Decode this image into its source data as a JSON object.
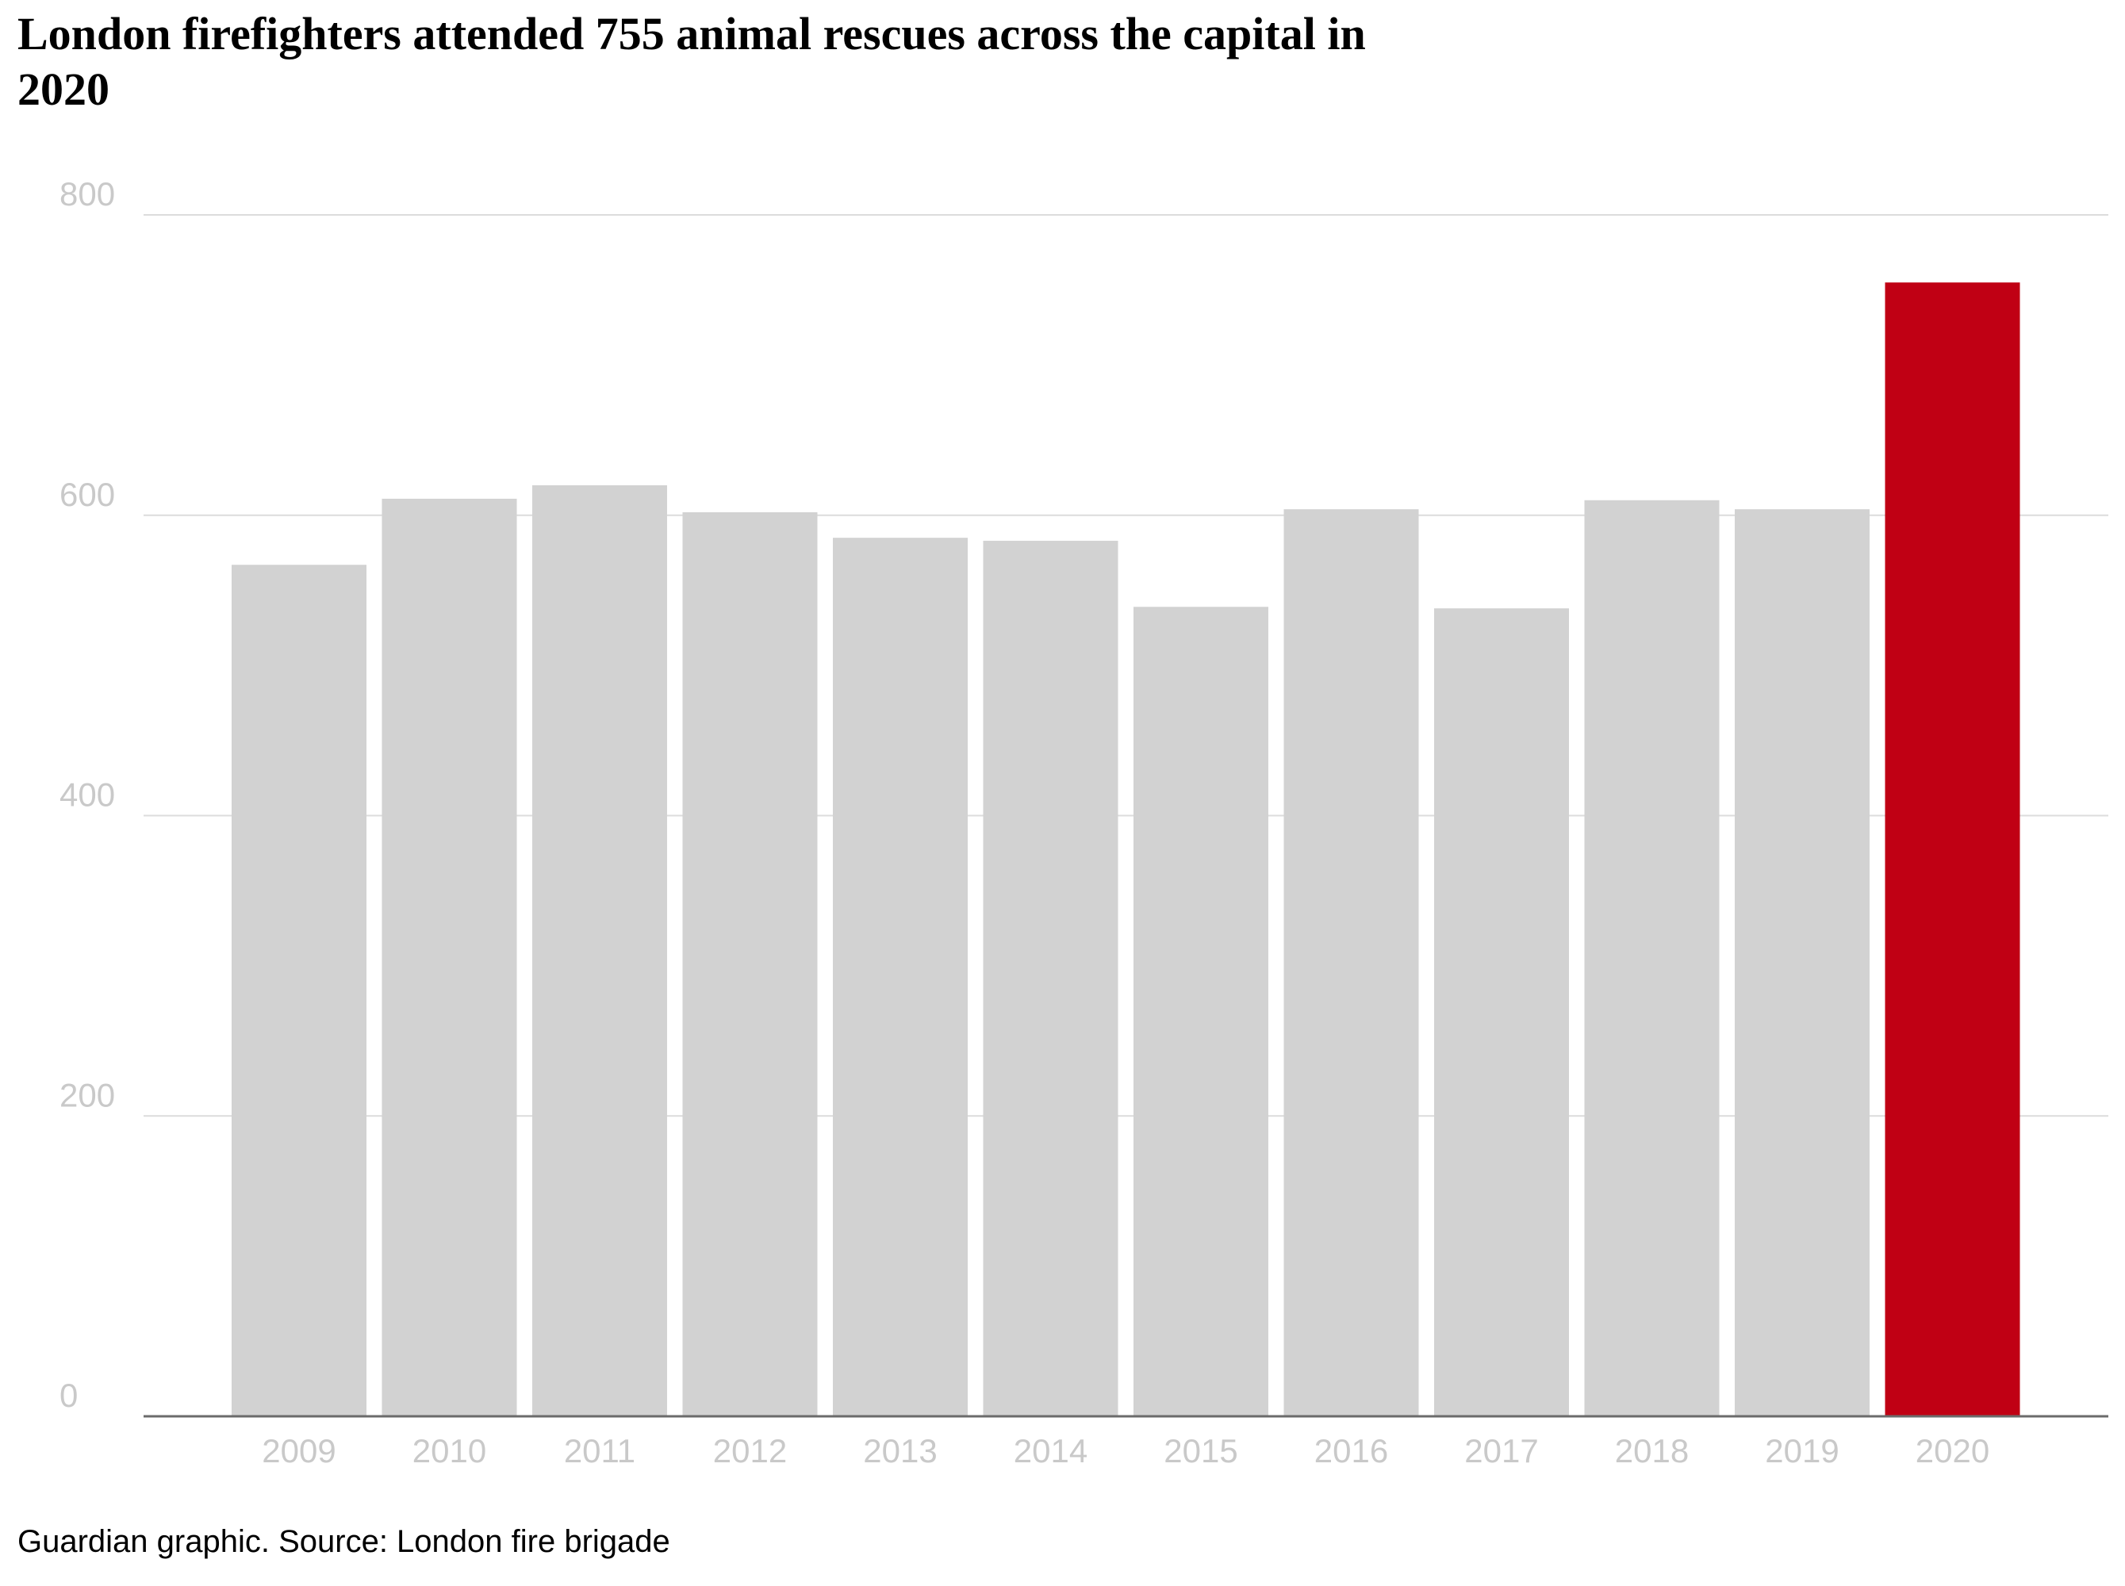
{
  "chart_data": {
    "type": "bar",
    "title": "London firefighters attended 755 animal rescues across the capital in 2020",
    "categories": [
      "2009",
      "2010",
      "2011",
      "2012",
      "2013",
      "2014",
      "2015",
      "2016",
      "2017",
      "2018",
      "2019",
      "2020"
    ],
    "values": [
      567,
      611,
      620,
      602,
      585,
      583,
      539,
      604,
      538,
      610,
      604,
      755
    ],
    "ylim": [
      0,
      800
    ],
    "yticks": [
      0,
      200,
      400,
      600,
      800
    ],
    "xlabel": "",
    "ylabel": "",
    "grid": true,
    "highlight_category": "2020",
    "colors": {
      "bar": "#d2d2d2",
      "highlight": "#c00014",
      "grid": "#dcdcdc",
      "axis": "#6b6b6b",
      "tick_label": "#c9c9c9"
    }
  },
  "source": "Guardian graphic. Source: London fire brigade"
}
